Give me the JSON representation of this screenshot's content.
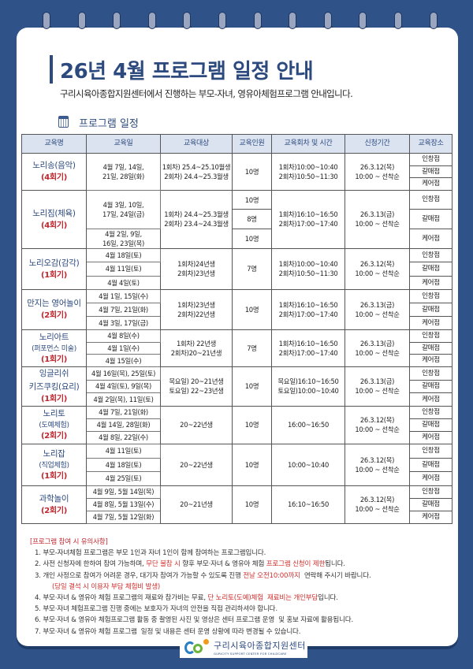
{
  "title": "26년 4월 프로그램 일정 안내",
  "subtitle": "구리시육아종합지원센터에서 진행하는 부모-자녀, 영유아체험프로그램 안내입니다.",
  "section_title": "프로그램 일정",
  "section_icon": "calendar-icon",
  "colors": {
    "background": "#2f5289",
    "accent": "#2c4a7e",
    "highlight": "#c0262e",
    "header_bg": "#dbe3f1"
  },
  "table": {
    "headers": [
      "교육명",
      "교육일",
      "교육대상",
      "교육인원",
      "교육회차 및 시간",
      "신청기간",
      "교육장소"
    ],
    "programs": [
      {
        "name": "노리송(음악)",
        "sub": "",
        "round": "(4회기)",
        "dates": [
          {
            "text": "4월 7일, 14일,\n21일, 28일(화)",
            "span": 3
          }
        ],
        "target": "1회차) 25.4~25.10월생\n2회차) 24.4~25.3월생",
        "capacity": [
          {
            "text": "10명",
            "span": 3
          }
        ],
        "time": "1회차)10:00~10:40\n2회차)10:50~11:30",
        "apply": "26.3.12(목)\n10:00 ~ 선착순",
        "locations": [
          "인창점",
          "갈매점",
          "케어점"
        ]
      },
      {
        "name": "노리짐(체육)",
        "sub": "",
        "round": "(4회기)",
        "dates": [
          {
            "text": "4월 3일, 10일,\n17일, 24일(금)",
            "span": 2
          },
          {
            "text": "4월 2일, 9일,\n16일, 23일(목)",
            "span": 1
          }
        ],
        "target": "1회차) 24.4~25.3월생\n2회차) 23.4~24.3월생",
        "capacity": [
          {
            "text": "10명",
            "span": 1
          },
          {
            "text": "8명",
            "span": 1
          },
          {
            "text": "10명",
            "span": 1
          }
        ],
        "time": "1회차)16:10~16:50\n2회차)17:00~17:40",
        "apply": "26.3.13(금)\n10:00 ~ 선착순",
        "locations": [
          "인창점",
          "갈매점",
          "케어점"
        ]
      },
      {
        "name": "노리오감(감각)",
        "sub": "",
        "round": "(1회기)",
        "dates": [
          {
            "text": "4월 18일(토)",
            "span": 1
          },
          {
            "text": "4월 11일(토)",
            "span": 1
          },
          {
            "text": "4월 4일(토)",
            "span": 1
          }
        ],
        "target": "1회차)24년생\n2회차)23년생",
        "capacity": [
          {
            "text": "7명",
            "span": 3
          }
        ],
        "time": "1회차)10:00~10:40\n2회차)10:50~11:30",
        "apply": "26.3.12(목)\n10:00 ~ 선착순",
        "locations": [
          "인창점",
          "갈매점",
          "케어점"
        ]
      },
      {
        "name": "만지는 영어놀이",
        "sub": "",
        "round": "(2회기)",
        "dates": [
          {
            "text": "4월 1일, 15일(수)",
            "span": 1
          },
          {
            "text": "4월 7일, 21일(화)",
            "span": 1
          },
          {
            "text": "4월 3일, 17일(금)",
            "span": 1
          }
        ],
        "target": "1회차)23년생\n2회차)22년생",
        "capacity": [
          {
            "text": "10명",
            "span": 3
          }
        ],
        "time": "1회차)16:10~16:50\n2회차)17:00~17:40",
        "apply": "26.3.13(금)\n10:00 ~ 선착순",
        "locations": [
          "인창점",
          "갈매점",
          "케어점"
        ]
      },
      {
        "name": "노리아트",
        "sub": "(퍼포먼스 미술)",
        "round": "(1회기)",
        "dates": [
          {
            "text": "4월 8일(수)",
            "span": 1
          },
          {
            "text": "4월 1일(수)",
            "span": 1
          },
          {
            "text": "4월 15일(수)",
            "span": 1
          }
        ],
        "target": "1회차) 22년생\n2회차)20~21년생",
        "capacity": [
          {
            "text": "7명",
            "span": 3
          }
        ],
        "time": "1회차)16:10~16:50\n2회차)17:00~17:40",
        "apply": "26.3.13(금)\n10:00 ~ 선착순",
        "locations": [
          "인창점",
          "갈매점",
          "케어점"
        ]
      },
      {
        "name": "잉글리쉬\n키즈쿠킹(요리)",
        "sub": "",
        "round": "(1회기)",
        "dates": [
          {
            "text": "4월 16일(목), 25일(토)",
            "span": 1
          },
          {
            "text": "4월 4일(토), 9일(목)",
            "span": 1
          },
          {
            "text": "4월 2일(목), 11일(토)",
            "span": 1
          }
        ],
        "target": "목요일) 20~21년생\n토요일) 22~23년생",
        "capacity": [
          {
            "text": "10명",
            "span": 3
          }
        ],
        "time": "목요일)16:10~16:50\n토요일)10:00~10:40",
        "apply": "26.3.13(금)\n10:00 ~ 선착순",
        "locations": [
          "인창점",
          "갈매점",
          "케어점"
        ]
      },
      {
        "name": "노리토",
        "sub": "(도예체험)",
        "round": "(2회기)",
        "dates": [
          {
            "text": "4월 7일, 21일(화)",
            "span": 1
          },
          {
            "text": "4월 14일, 28일(화)",
            "span": 1
          },
          {
            "text": "4월 8일, 22일(수)",
            "span": 1
          }
        ],
        "target": "20~22년생",
        "capacity": [
          {
            "text": "10명",
            "span": 3
          }
        ],
        "time": "16:00~16:50",
        "apply": "26.3.12(목)\n10:00 ~ 선착순",
        "locations": [
          "인창점",
          "갈매점",
          "케어점"
        ]
      },
      {
        "name": "노리잡",
        "sub": "(직업체험)",
        "round": "(1회기)",
        "dates": [
          {
            "text": "4월 11일(토)",
            "span": 1
          },
          {
            "text": "4월 18일(토)",
            "span": 1
          },
          {
            "text": "4월 25일(토)",
            "span": 1
          }
        ],
        "target": "20~22년생",
        "capacity": [
          {
            "text": "10명",
            "span": 3
          }
        ],
        "time": "10:00~10:40",
        "apply": "26.3.12(목)\n10:00 ~ 선착순",
        "locations": [
          "인창점",
          "갈매점",
          "케어점"
        ]
      },
      {
        "name": "과학놀이",
        "sub": "",
        "round": "(2회기)",
        "dates": [
          {
            "text": "4월 9일, 5월 14일(목)",
            "span": 1
          },
          {
            "text": "4월 8일, 5월 13일(수)",
            "span": 1
          },
          {
            "text": "4월 7일, 5월 12일(화)",
            "span": 1
          }
        ],
        "target": "20~21년생",
        "capacity": [
          {
            "text": "10명",
            "span": 3
          }
        ],
        "time": "16:10~16:50",
        "apply": "26.3.12(목)\n10:00 ~ 선착순",
        "locations": [
          "인창점",
          "갈매점",
          "케어점"
        ]
      }
    ]
  },
  "notes": {
    "heading": "[프로그램 참여 시 유의사항]",
    "items": [
      [
        {
          "text": "1. 부모-자녀체험 프로그램은 부모 1인과 자녀 1인이 함께 참여하는 프로그램입니다."
        }
      ],
      [
        {
          "text": "2. 사전 신청자에 한하여 참여 가능하며, "
        },
        {
          "text": "무단 불참 시",
          "red": true
        },
        {
          "text": " 향후 부모·자녀 & 영유아 체험 "
        },
        {
          "text": "프로그램 신청이 제한",
          "red": true
        },
        {
          "text": "됩니다."
        }
      ],
      [
        {
          "text": "3. 개인 사정으로 참여가 어려운 경우, 대기자 참여가 가능할 수 있도록 진행 "
        },
        {
          "text": "전날 오전10:00까지",
          "red": true
        },
        {
          "text": "  연락해 주시기 바랍니다."
        }
      ],
      [
        {
          "text": "(당일 결석 시 이용자 부담 체험비 발생)",
          "red": true,
          "indent": true
        }
      ],
      [
        {
          "text": "4. 부모·자녀 & 영유아 체험 프로그램의 재료와 참가비는 무료, "
        },
        {
          "text": "단 노리토(도예)체험  재료비는 개인부담",
          "red": true
        },
        {
          "text": "입니다."
        }
      ],
      [
        {
          "text": "5. 부모·자녀 체험프로그램 진행 중에는 보호자가 자녀의 안전을 직접 관리하셔야 합니다."
        }
      ],
      [
        {
          "text": "6. 부모·자녀 & 영유아 체험프로그램 활동 중 촬영된 사진 및 영상은 센터 프로그램 운영  및 홍보 자료에 활용됩니다."
        }
      ],
      [
        {
          "text": "7. 부모·자녀 & 영유아 체험 프로그램  일정 및 내용은 센터 운영 상황에 따라 변경될 수 있습니다."
        }
      ]
    ]
  },
  "logo": {
    "name_ko": "구리시육아종합지원센터",
    "name_en": "GURICITY SUPPORT CENTER FOR CHILDCARE"
  }
}
